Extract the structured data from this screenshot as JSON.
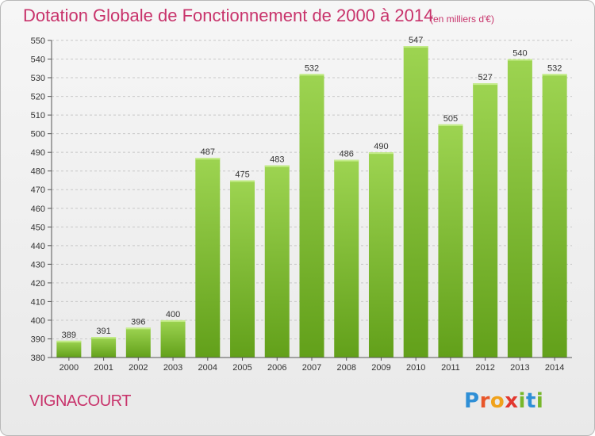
{
  "header": {
    "title": "Dotation Globale de Fonctionnement de 2000 à 2014",
    "subtitle": "(en milliers d'€)"
  },
  "footer": {
    "commune": "VIGNACOURT",
    "logo_text": "Proxiti"
  },
  "colors": {
    "title": "#c8336b",
    "bar_light": "#9dd451",
    "bar_dark": "#62a01a",
    "grid": "#c8c8c8"
  },
  "chart_data": {
    "type": "bar",
    "title": "Dotation Globale de Fonctionnement de 2000 à 2014",
    "subtitle": "(en milliers d'€)",
    "categories": [
      "2000",
      "2001",
      "2002",
      "2003",
      "2004",
      "2005",
      "2006",
      "2007",
      "2008",
      "2009",
      "2010",
      "2011",
      "2012",
      "2013",
      "2014"
    ],
    "values": [
      389,
      391,
      396,
      400,
      487,
      475,
      483,
      532,
      486,
      490,
      547,
      505,
      527,
      540,
      532
    ],
    "ylim": [
      380,
      550
    ],
    "yticks": [
      380,
      390,
      400,
      410,
      420,
      430,
      440,
      450,
      460,
      470,
      480,
      490,
      500,
      510,
      520,
      530,
      540,
      550
    ],
    "grid": true,
    "xlabel": "",
    "ylabel": ""
  }
}
